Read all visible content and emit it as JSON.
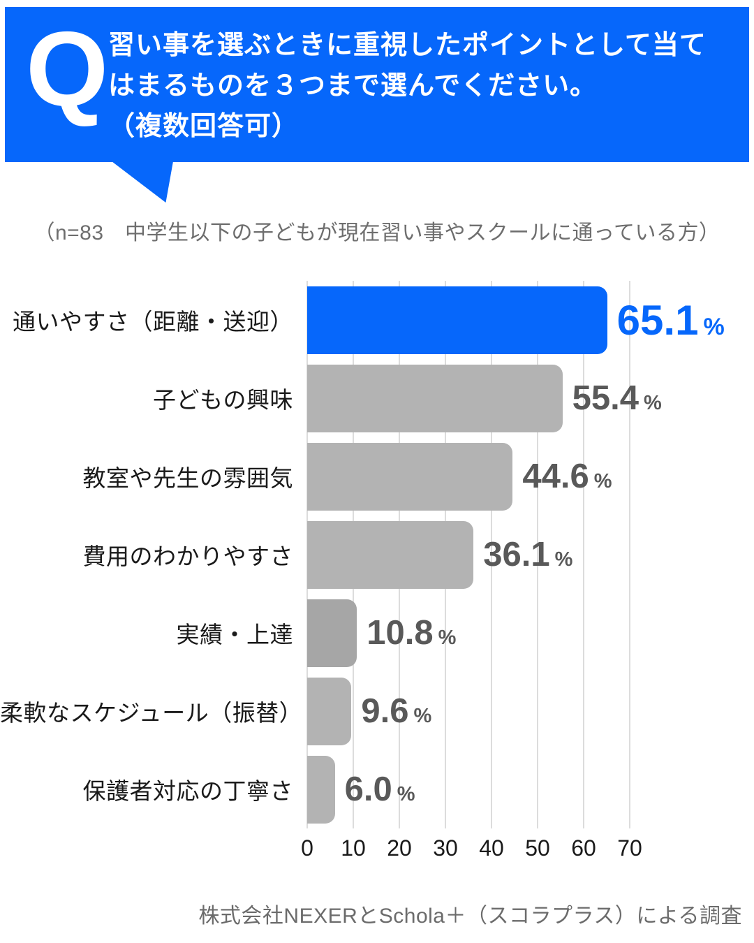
{
  "header": {
    "q_mark": "Q",
    "question_lines": [
      "習い事を選ぶときに重視したポイントとして当て",
      "はまるものを３つまで選んでください。",
      "（複数回答可）"
    ],
    "bg_color": "#0667fb"
  },
  "subtitle": "（n=83　中学生以下の子どもが現在習い事やスクールに通っている方）",
  "chart_data": {
    "type": "bar",
    "orientation": "horizontal",
    "categories": [
      "通いやすさ（距離・送迎）",
      "子どもの興味",
      "教室や先生の雰囲気",
      "費用のわかりやすさ",
      "実績・上達",
      "柔軟なスケジュール（振替）",
      "保護者対応の丁寧さ"
    ],
    "values": [
      65.1,
      55.4,
      44.6,
      36.1,
      10.8,
      9.6,
      6.0
    ],
    "value_labels": [
      "65.1",
      "55.4",
      "44.6",
      "36.1",
      "10.8",
      "9.6",
      "6.0"
    ],
    "unit": "%",
    "x_ticks": [
      0,
      10,
      20,
      30,
      40,
      50,
      60,
      70
    ],
    "xlim": [
      0,
      70
    ],
    "grid": true,
    "legend": false,
    "highlight_index": 0,
    "dark_index": 4,
    "colors": {
      "highlight_bar": "#0667fb",
      "bar": "#b3b3b3",
      "bar_dark": "#a6a6a6",
      "highlight_value_text": "#0667fb",
      "value_text": "#595959",
      "gridline": "#dcdcdc"
    }
  },
  "footer": "株式会社NEXERとSchola＋（スコラプラス）による調査"
}
